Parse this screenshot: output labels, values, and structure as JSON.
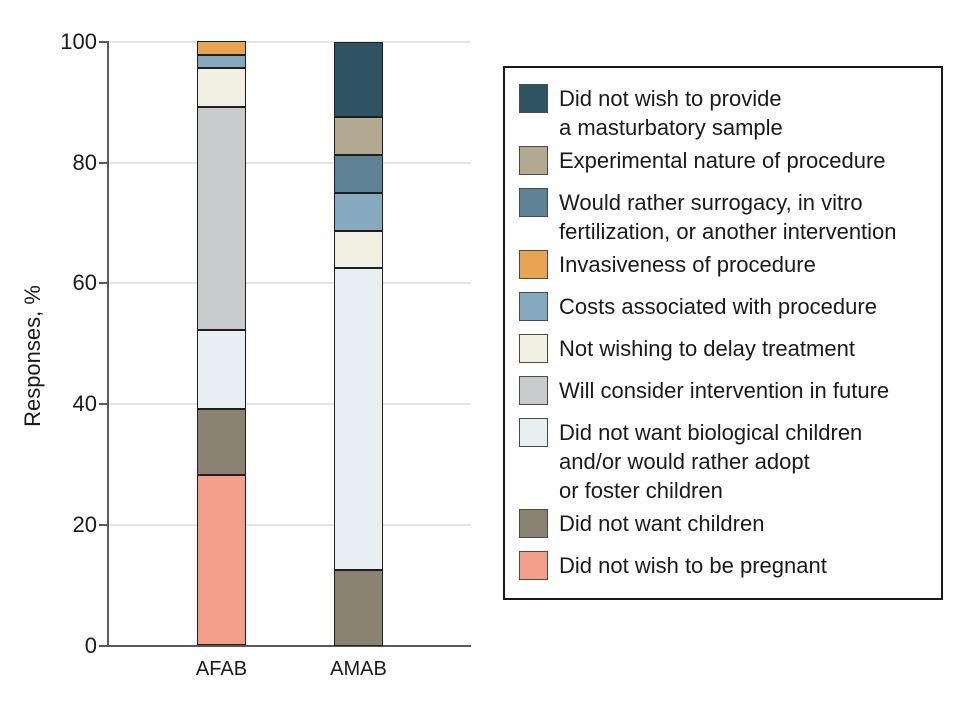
{
  "chart_data": {
    "type": "bar",
    "stacked": true,
    "orientation": "vertical",
    "title": "",
    "xlabel": "",
    "ylabel": "Responses, %",
    "ylim": [
      0,
      100
    ],
    "yticks": [
      0,
      20,
      40,
      60,
      80,
      100
    ],
    "grid": true,
    "legend_position": "right",
    "categories": [
      "AFAB",
      "AMAB"
    ],
    "series": [
      {
        "name": "Did not wish to provide a masturbatory sample",
        "legend_label": "Did not wish to provide\na masturbatory sample",
        "color": "#2e5363",
        "values": [
          0,
          12.5
        ]
      },
      {
        "name": "Experimental nature of procedure",
        "legend_label": "Experimental nature of procedure",
        "color": "#b3a890",
        "values": [
          0,
          6.25
        ]
      },
      {
        "name": "Would rather surrogacy, in vitro fertilization, or another intervention",
        "legend_label": "Would rather surrogacy, in vitro\nfertilization, or another intervention",
        "color": "#5e8396",
        "values": [
          0,
          6.25
        ]
      },
      {
        "name": "Invasiveness of procedure",
        "legend_label": "Invasiveness of procedure",
        "color": "#e7a452",
        "values": [
          2.2,
          0
        ]
      },
      {
        "name": "Costs associated with procedure",
        "legend_label": "Costs associated with procedure",
        "color": "#85aabf",
        "values": [
          2.2,
          6.25
        ]
      },
      {
        "name": "Not wishing to delay treatment",
        "legend_label": "Not wishing to delay treatment",
        "color": "#f0efe2",
        "values": [
          6.5,
          6.25
        ]
      },
      {
        "name": "Will consider intervention in future",
        "legend_label": "Will consider intervention in future",
        "color": "#c8cacc",
        "values": [
          37.0,
          0
        ]
      },
      {
        "name": "Did not want biological children and/or would rather adopt or foster children",
        "legend_label": "Did not want biological children\nand/or would rather adopt\nor foster children",
        "color": "#e8eff3",
        "values": [
          13.0,
          50.0
        ]
      },
      {
        "name": "Did not want children",
        "legend_label": "Did not want children",
        "color": "#8b8272",
        "values": [
          10.9,
          12.5
        ]
      },
      {
        "name": "Did not wish to be pregnant",
        "legend_label": "Did not wish to be pregnant",
        "color": "#f29e88",
        "values": [
          28.3,
          0
        ]
      }
    ]
  },
  "colors": {
    "axis": "#595959",
    "grid": "#e5e5e5",
    "segment_border": "#1f1f1f",
    "text": "#1a1a1a"
  }
}
